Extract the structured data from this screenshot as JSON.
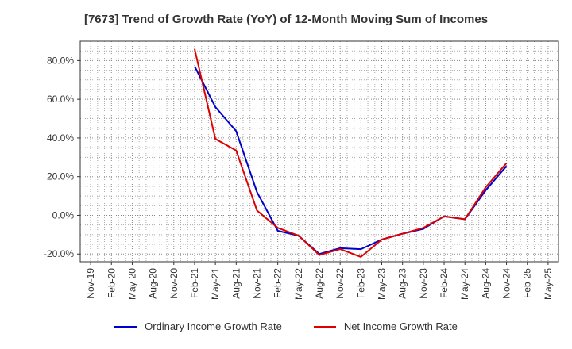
{
  "chart_data": {
    "type": "line",
    "title": "[7673]  Trend of Growth Rate (YoY) of 12-Month Moving Sum of Incomes",
    "xlabel": "",
    "ylabel": "",
    "x_ticks": [
      "Nov-19",
      "Feb-20",
      "May-20",
      "Aug-20",
      "Nov-20",
      "Feb-21",
      "May-21",
      "Aug-21",
      "Nov-21",
      "Feb-22",
      "May-22",
      "Aug-22",
      "Nov-22",
      "Feb-23",
      "May-23",
      "Aug-23",
      "Nov-23",
      "Feb-24",
      "May-24",
      "Aug-24",
      "Nov-24",
      "Feb-25",
      "May-25"
    ],
    "y_ticks": [
      80.0,
      60.0,
      40.0,
      20.0,
      0.0,
      -20.0
    ],
    "y_tick_labels": [
      "80.0%",
      "60.0%",
      "40.0%",
      "20.0%",
      "0.0%",
      "-20.0%"
    ],
    "ylim": [
      -24,
      90
    ],
    "grid": true,
    "legend_position": "bottom",
    "x": [
      "Feb-21",
      "May-21",
      "Aug-21",
      "Nov-21",
      "Feb-22",
      "May-22",
      "Aug-22",
      "Nov-22",
      "Feb-23",
      "May-23",
      "Aug-23",
      "Nov-23",
      "Feb-24",
      "May-24",
      "Aug-24",
      "Nov-24"
    ],
    "series": [
      {
        "name": "Ordinary Income Growth Rate",
        "color": "#0000cc",
        "values": [
          77.0,
          56.0,
          43.5,
          12.0,
          -8.0,
          -10.5,
          -20.0,
          -17.0,
          -17.5,
          -12.5,
          -9.5,
          -7.0,
          -0.5,
          -2.0,
          13.0,
          25.5
        ]
      },
      {
        "name": "Net Income Growth Rate",
        "color": "#dd0000",
        "values": [
          86.0,
          39.5,
          33.5,
          2.5,
          -6.5,
          -10.5,
          -20.5,
          -17.5,
          -21.5,
          -12.5,
          -9.5,
          -6.5,
          -0.5,
          -2.0,
          14.5,
          27.0
        ]
      }
    ]
  }
}
